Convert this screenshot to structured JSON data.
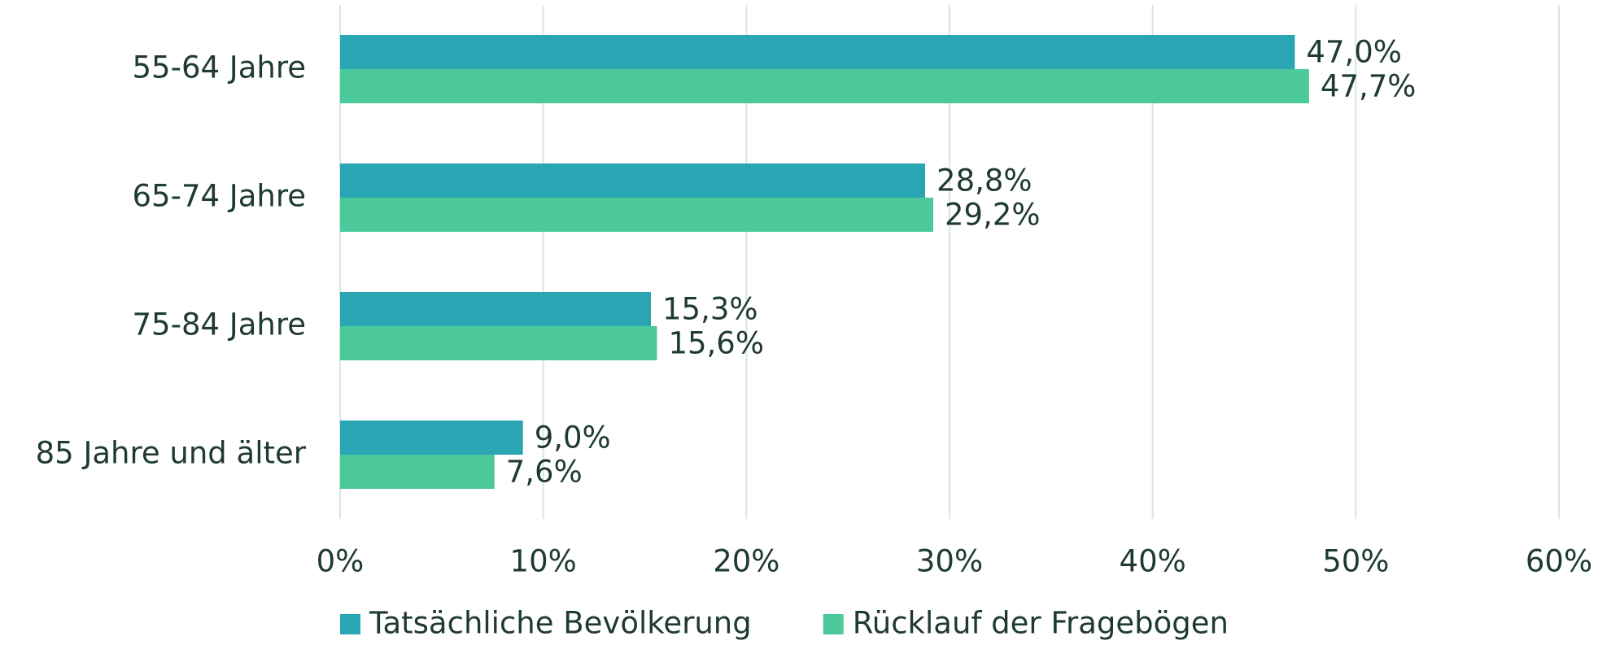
{
  "chart_data": {
    "type": "bar",
    "orientation": "horizontal",
    "categories": [
      "55-64 Jahre",
      "65-74 Jahre",
      "75-84 Jahre",
      "85 Jahre und älter"
    ],
    "series": [
      {
        "name": "Tatsächliche Bevölkerung",
        "color": "#2aa5b3",
        "values": [
          47.0,
          28.8,
          15.3,
          9.0
        ],
        "value_labels": [
          "47,0%",
          "28,8%",
          "15,3%",
          "9,0%"
        ]
      },
      {
        "name": "Rücklauf der Fragebögen",
        "color": "#4cc99b",
        "values": [
          47.7,
          29.2,
          15.6,
          7.6
        ],
        "value_labels": [
          "47,7%",
          "29,2%",
          "15,6%",
          "7,6%"
        ]
      }
    ],
    "xlim": [
      0,
      60
    ],
    "xticks": [
      {
        "value": 0,
        "label": "0%"
      },
      {
        "value": 10,
        "label": "10%"
      },
      {
        "value": 20,
        "label": "20%"
      },
      {
        "value": 30,
        "label": "30%"
      },
      {
        "value": 40,
        "label": "40%"
      },
      {
        "value": 50,
        "label": "50%"
      },
      {
        "value": 60,
        "label": "60%"
      }
    ],
    "grid": true,
    "legend": "bottom"
  }
}
